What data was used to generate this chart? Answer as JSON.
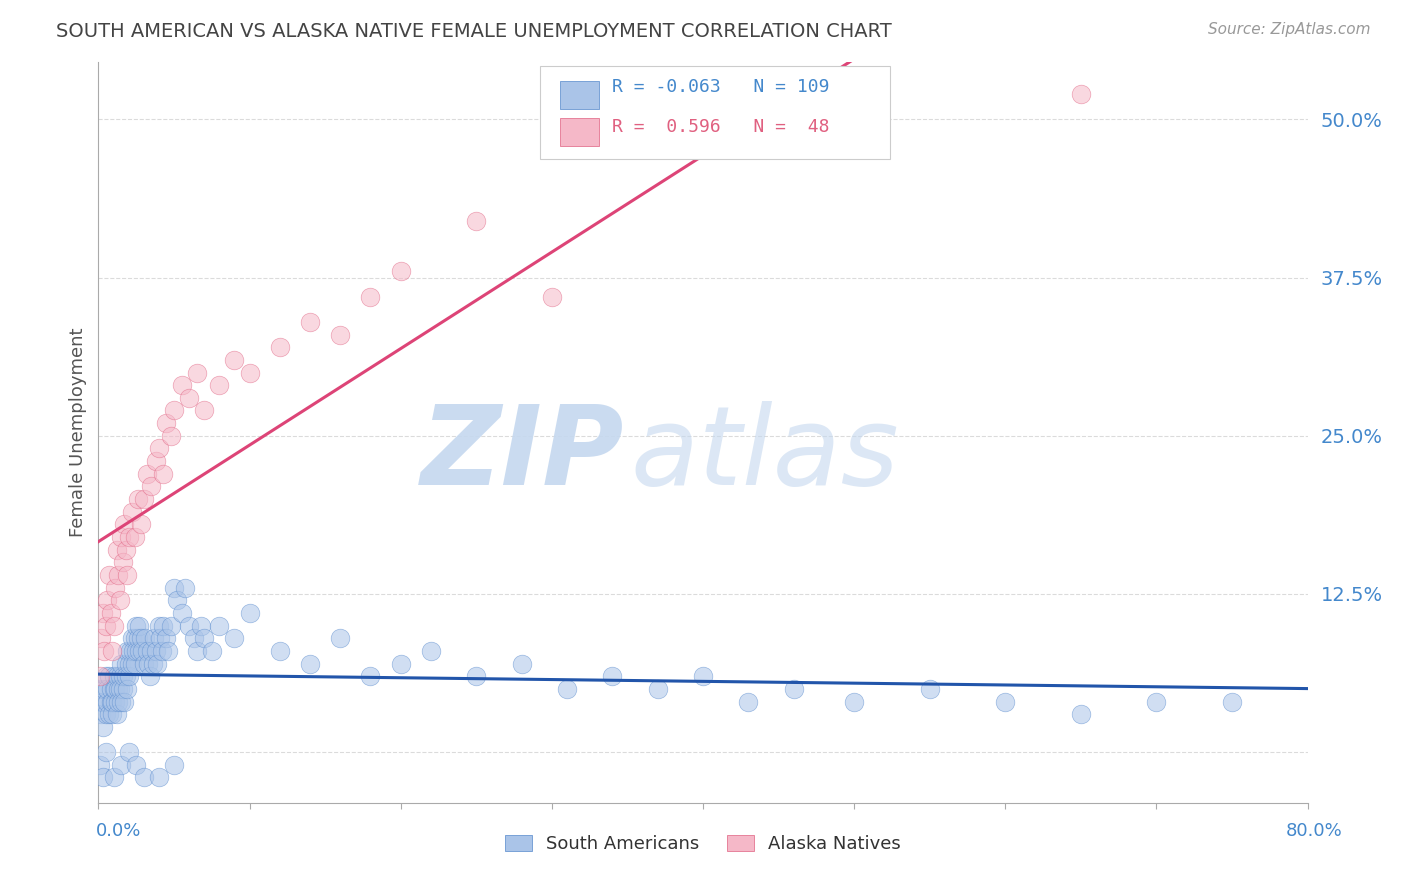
{
  "title": "SOUTH AMERICAN VS ALASKA NATIVE FEMALE UNEMPLOYMENT CORRELATION CHART",
  "source": "Source: ZipAtlas.com",
  "ylabel": "Female Unemployment",
  "y_ticks": [
    0.0,
    0.125,
    0.25,
    0.375,
    0.5
  ],
  "y_tick_labels": [
    "",
    "12.5%",
    "25.0%",
    "37.5%",
    "50.0%"
  ],
  "xlim": [
    0.0,
    0.8
  ],
  "ylim": [
    -0.04,
    0.545
  ],
  "blue_R": -0.063,
  "blue_N": 109,
  "pink_R": 0.596,
  "pink_N": 48,
  "blue_color": "#aac4e8",
  "pink_color": "#f5b8c8",
  "blue_edge_color": "#5588cc",
  "pink_edge_color": "#e06080",
  "blue_line_color": "#2255aa",
  "pink_line_color": "#dd4477",
  "watermark_zip_color": "#c5d8ef",
  "watermark_atlas_color": "#c5d8ef",
  "background_color": "#ffffff",
  "grid_color": "#cccccc",
  "tick_label_color": "#4488cc",
  "title_color": "#444444",
  "source_color": "#999999",
  "blue_scatter_x": [
    0.001,
    0.002,
    0.002,
    0.003,
    0.003,
    0.004,
    0.005,
    0.005,
    0.006,
    0.006,
    0.007,
    0.007,
    0.008,
    0.008,
    0.009,
    0.009,
    0.01,
    0.01,
    0.011,
    0.011,
    0.012,
    0.012,
    0.013,
    0.013,
    0.014,
    0.014,
    0.015,
    0.015,
    0.016,
    0.016,
    0.017,
    0.018,
    0.018,
    0.019,
    0.019,
    0.02,
    0.02,
    0.021,
    0.022,
    0.022,
    0.023,
    0.024,
    0.024,
    0.025,
    0.025,
    0.026,
    0.027,
    0.027,
    0.028,
    0.029,
    0.03,
    0.031,
    0.032,
    0.033,
    0.034,
    0.035,
    0.036,
    0.037,
    0.038,
    0.039,
    0.04,
    0.041,
    0.042,
    0.043,
    0.045,
    0.046,
    0.048,
    0.05,
    0.052,
    0.055,
    0.057,
    0.06,
    0.063,
    0.065,
    0.068,
    0.07,
    0.075,
    0.08,
    0.09,
    0.1,
    0.12,
    0.14,
    0.16,
    0.18,
    0.2,
    0.22,
    0.25,
    0.28,
    0.31,
    0.34,
    0.37,
    0.4,
    0.43,
    0.46,
    0.5,
    0.55,
    0.6,
    0.65,
    0.7,
    0.75,
    0.001,
    0.003,
    0.005,
    0.01,
    0.015,
    0.02,
    0.025,
    0.03,
    0.04,
    0.05
  ],
  "blue_scatter_y": [
    0.04,
    0.03,
    0.05,
    0.04,
    0.02,
    0.05,
    0.03,
    0.06,
    0.04,
    0.05,
    0.03,
    0.06,
    0.04,
    0.05,
    0.03,
    0.04,
    0.05,
    0.06,
    0.04,
    0.05,
    0.03,
    0.06,
    0.05,
    0.04,
    0.06,
    0.05,
    0.04,
    0.07,
    0.05,
    0.06,
    0.04,
    0.07,
    0.06,
    0.05,
    0.08,
    0.06,
    0.07,
    0.08,
    0.07,
    0.09,
    0.08,
    0.07,
    0.09,
    0.08,
    0.1,
    0.09,
    0.08,
    0.1,
    0.09,
    0.08,
    0.07,
    0.09,
    0.08,
    0.07,
    0.06,
    0.08,
    0.07,
    0.09,
    0.08,
    0.07,
    0.1,
    0.09,
    0.08,
    0.1,
    0.09,
    0.08,
    0.1,
    0.13,
    0.12,
    0.11,
    0.13,
    0.1,
    0.09,
    0.08,
    0.1,
    0.09,
    0.08,
    0.1,
    0.09,
    0.11,
    0.08,
    0.07,
    0.09,
    0.06,
    0.07,
    0.08,
    0.06,
    0.07,
    0.05,
    0.06,
    0.05,
    0.06,
    0.04,
    0.05,
    0.04,
    0.05,
    0.04,
    0.03,
    0.04,
    0.04,
    -0.01,
    -0.02,
    0.0,
    -0.02,
    -0.01,
    0.0,
    -0.01,
    -0.02,
    -0.02,
    -0.01
  ],
  "pink_scatter_x": [
    0.001,
    0.002,
    0.003,
    0.004,
    0.005,
    0.006,
    0.007,
    0.008,
    0.009,
    0.01,
    0.011,
    0.012,
    0.013,
    0.014,
    0.015,
    0.016,
    0.017,
    0.018,
    0.019,
    0.02,
    0.022,
    0.024,
    0.026,
    0.028,
    0.03,
    0.032,
    0.035,
    0.038,
    0.04,
    0.043,
    0.045,
    0.048,
    0.05,
    0.055,
    0.06,
    0.065,
    0.07,
    0.08,
    0.09,
    0.1,
    0.12,
    0.14,
    0.16,
    0.18,
    0.2,
    0.25,
    0.3,
    0.65
  ],
  "pink_scatter_y": [
    0.06,
    0.09,
    0.11,
    0.08,
    0.1,
    0.12,
    0.14,
    0.11,
    0.08,
    0.1,
    0.13,
    0.16,
    0.14,
    0.12,
    0.17,
    0.15,
    0.18,
    0.16,
    0.14,
    0.17,
    0.19,
    0.17,
    0.2,
    0.18,
    0.2,
    0.22,
    0.21,
    0.23,
    0.24,
    0.22,
    0.26,
    0.25,
    0.27,
    0.29,
    0.28,
    0.3,
    0.27,
    0.29,
    0.31,
    0.3,
    0.32,
    0.34,
    0.33,
    0.36,
    0.38,
    0.42,
    0.36,
    0.52
  ]
}
